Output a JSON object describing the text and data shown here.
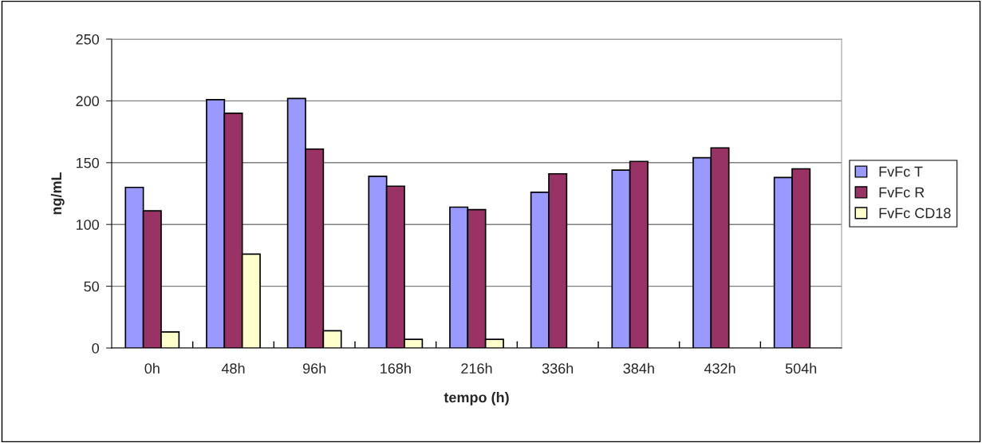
{
  "chart_data": {
    "type": "bar",
    "xlabel": "tempo (h)",
    "ylabel": "ng/mL",
    "categories": [
      "0h",
      "48h",
      "96h",
      "168h",
      "216h",
      "336h",
      "384h",
      "432h",
      "504h"
    ],
    "series": [
      {
        "name": "FvFc T",
        "color": "#9999ff",
        "values": [
          130,
          201,
          202,
          139,
          114,
          126,
          144,
          154,
          138
        ]
      },
      {
        "name": "FvFc R",
        "color": "#993366",
        "values": [
          111,
          190,
          161,
          131,
          112,
          141,
          151,
          162,
          145
        ]
      },
      {
        "name": "FvFc CD18",
        "color": "#ffffcc",
        "values": [
          13,
          76,
          14,
          7,
          7,
          null,
          null,
          null,
          null
        ]
      }
    ],
    "ylim": [
      0,
      250
    ],
    "yticks": [
      0,
      50,
      100,
      150,
      200,
      250
    ],
    "grid": "y",
    "legend": "right"
  }
}
